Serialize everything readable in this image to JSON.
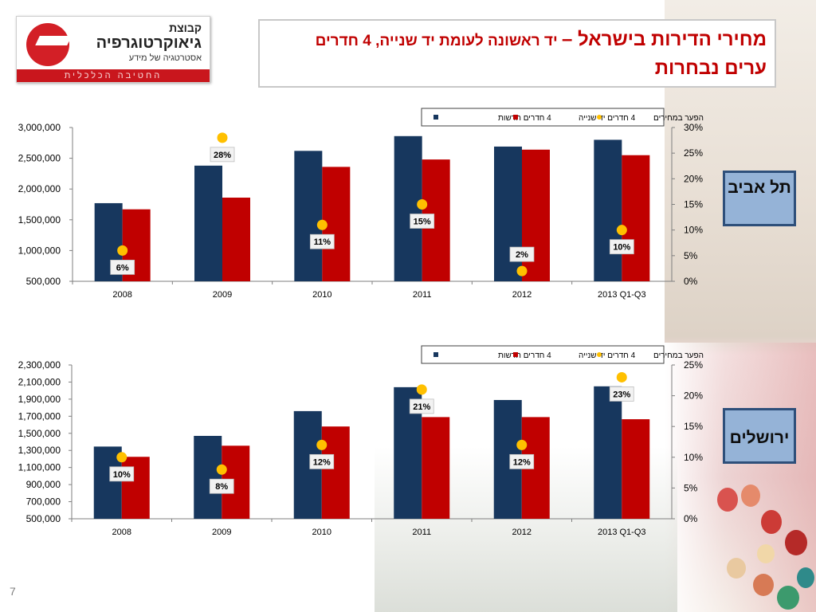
{
  "header": {
    "title_main": "מחירי הדירות בישראל –",
    "title_sub": " יד ראשונה לעומת יד שנייה, 4 חדרים",
    "title_line2": "ערים נבחרות"
  },
  "logo": {
    "line1": "קבוצת",
    "line2": "גיאוקרטוגרפיה",
    "line3": "אסטרטגיה של מידע",
    "strip": "החטיבה הכלכלית"
  },
  "cities": {
    "tel_aviv": "תל אביב",
    "jerusalem": "ירושלים"
  },
  "page_number": "7",
  "colors": {
    "new": "#17375e",
    "second_hand": "#c00000",
    "gap": "#ffc000",
    "title": "#c00000",
    "city_box": "#95b3d7"
  },
  "chart_data": [
    {
      "type": "bar",
      "city": "תל אביב",
      "categories": [
        "2008",
        "2009",
        "2010",
        "2011",
        "2012",
        "2013 Q1-Q3"
      ],
      "series": [
        {
          "name": "4 חדרים חדשות",
          "values": [
            1770000,
            2380000,
            2620000,
            2860000,
            2690000,
            2800000
          ]
        },
        {
          "name": "4 חדרים יד שנייה",
          "values": [
            1670000,
            1860000,
            2360000,
            2480000,
            2640000,
            2550000
          ]
        }
      ],
      "gap_series": {
        "name": "הפער במחירים",
        "values": [
          6,
          28,
          11,
          15,
          2,
          10
        ],
        "labels": [
          "6%",
          "28%",
          "11%",
          "15%",
          "2%",
          "10%"
        ]
      },
      "ylim": [
        500000,
        3000000
      ],
      "yticks": [
        "3,000,000",
        "2,500,000",
        "2,000,000",
        "1,500,000",
        "1,000,000",
        "500,000"
      ],
      "y2lim": [
        0,
        30
      ],
      "y2ticks": [
        "30%",
        "25%",
        "20%",
        "15%",
        "10%",
        "5%",
        "0%"
      ],
      "legend": "top-right",
      "grid": false
    },
    {
      "type": "bar",
      "city": "ירושלים",
      "categories": [
        "2008",
        "2009",
        "2010",
        "2011",
        "2012",
        "2013 Q1-Q3"
      ],
      "series": [
        {
          "name": "4 חדרים חדשות",
          "values": [
            1345000,
            1470000,
            1760000,
            2040000,
            1890000,
            2050000
          ]
        },
        {
          "name": "4 חדרים יד שנייה",
          "values": [
            1225000,
            1355000,
            1580000,
            1690000,
            1690000,
            1665000
          ]
        }
      ],
      "gap_series": {
        "name": "הפער במחירים",
        "values": [
          10,
          8,
          12,
          21,
          12,
          23
        ],
        "labels": [
          "10%",
          "8%",
          "12%",
          "21%",
          "12%",
          "23%"
        ]
      },
      "ylim": [
        500000,
        2300000
      ],
      "yticks": [
        "2,300,000",
        "2,100,000",
        "1,900,000",
        "1,700,000",
        "1,500,000",
        "1,300,000",
        "1,100,000",
        "900,000",
        "700,000",
        "500,000"
      ],
      "y2lim": [
        0,
        25
      ],
      "y2ticks": [
        "25%",
        "20%",
        "15%",
        "10%",
        "5%",
        "0%"
      ],
      "legend": "top-right",
      "grid": false
    }
  ]
}
